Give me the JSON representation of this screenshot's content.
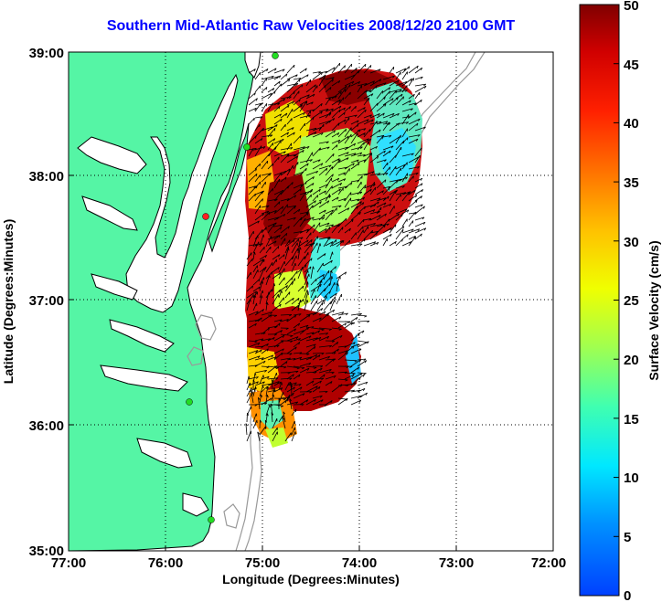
{
  "title": "Southern Mid-Atlantic Raw Velocities 2008/12/20 2100 GMT",
  "x_axis": {
    "label": "Longitude (Degrees:Minutes)",
    "ticks": [
      "77:00",
      "76:00",
      "75:00",
      "74:00",
      "73:00",
      "72:00"
    ]
  },
  "y_axis": {
    "label": "Latitude (Degrees:Minutes)",
    "ticks": [
      "39:00",
      "38:00",
      "37:00",
      "36:00",
      "35:00"
    ]
  },
  "colorbar": {
    "label": "Surface Velocity (cm/s)",
    "ticks": [
      "50",
      "45",
      "40",
      "35",
      "30",
      "25",
      "20",
      "15",
      "10",
      "5",
      "0"
    ],
    "min": 0,
    "max": 50,
    "colormap": "jet"
  },
  "colors": {
    "title": "#0000ff",
    "land": "#55f5a5",
    "coastline": "#000000",
    "bathymetry": "#999999",
    "station_marker": "#22dd22",
    "station_marker_red": "#ff2222"
  },
  "map": {
    "lon_range": [
      -77,
      -72
    ],
    "lat_range": [
      35,
      39
    ],
    "grid": "dotted"
  }
}
